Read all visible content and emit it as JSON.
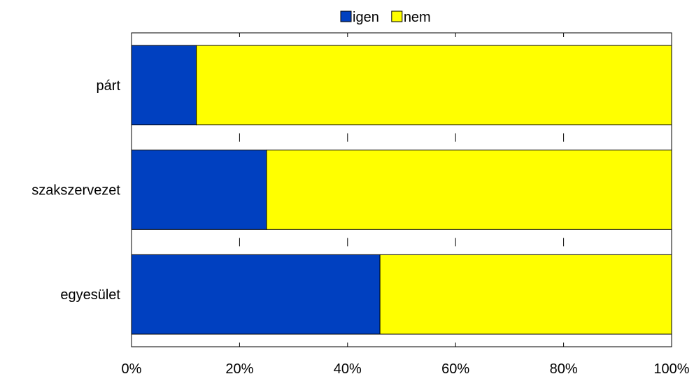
{
  "chart_data": {
    "type": "bar",
    "orientation": "horizontal",
    "stacked": "percent",
    "title": "",
    "xlabel": "",
    "ylabel": "",
    "categories": [
      "párt",
      "szakszervezet",
      "egyesület"
    ],
    "series": [
      {
        "name": "igen",
        "color": "#0040c0",
        "values": [
          12,
          25,
          46
        ]
      },
      {
        "name": "nem",
        "color": "#ffff00",
        "values": [
          88,
          75,
          54
        ]
      }
    ],
    "xlim": [
      0,
      100
    ],
    "xticks": [
      0,
      20,
      40,
      60,
      80,
      100
    ],
    "xtick_labels": [
      "0%",
      "20%",
      "40%",
      "60%",
      "80%",
      "100%"
    ],
    "grid": false,
    "legend_position": "top"
  }
}
